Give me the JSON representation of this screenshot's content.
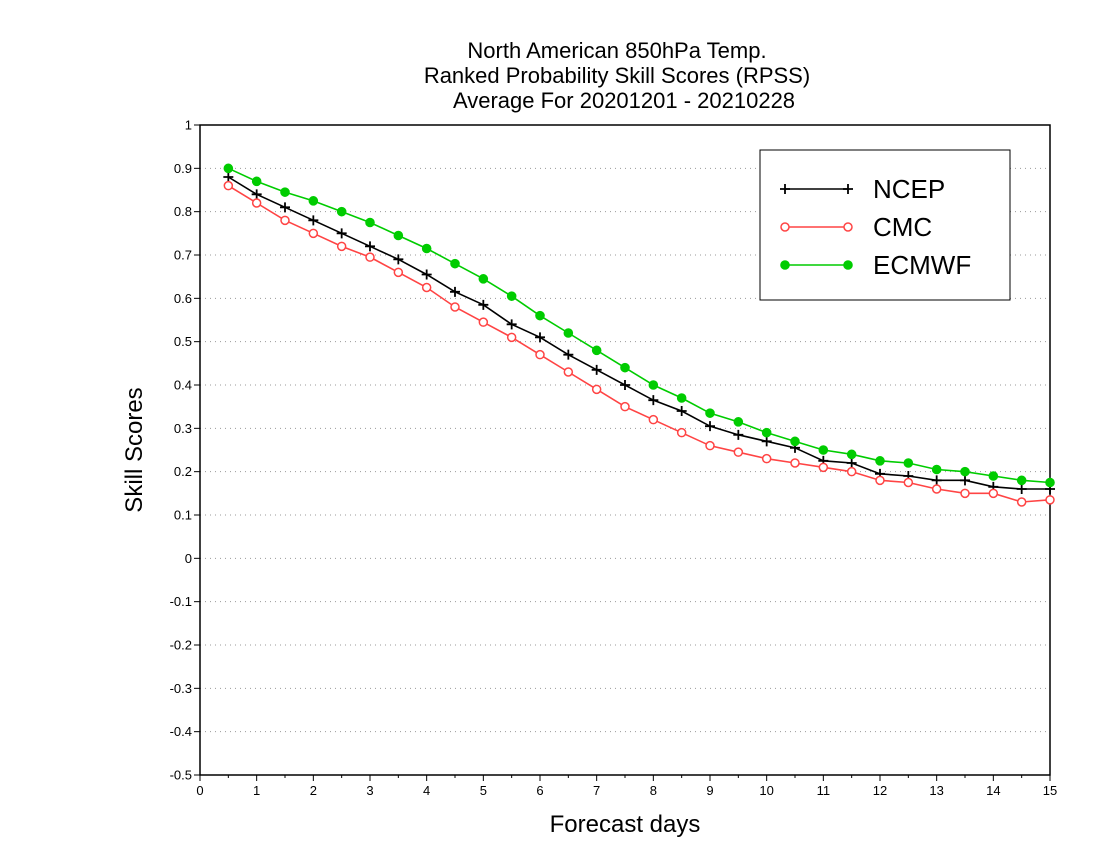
{
  "chart_data": {
    "type": "line",
    "title": [
      "North American 850hPa Temp.",
      "Ranked Probability Skill Scores (RPSS)",
      "Average For 20201201 - 20210228"
    ],
    "xlabel": "Forecast days",
    "ylabel": "Skill Scores",
    "xlim": [
      0,
      15
    ],
    "ylim": [
      -0.5,
      1
    ],
    "xticks": [
      "0",
      "1",
      "2",
      "3",
      "4",
      "5",
      "6",
      "7",
      "8",
      "9",
      "10",
      "11",
      "12",
      "13",
      "14",
      "15"
    ],
    "yticks": [
      "-0.5",
      "-0.4",
      "-0.3",
      "-0.2",
      "-0.1",
      "0",
      "0.1",
      "0.2",
      "0.3",
      "0.4",
      "0.5",
      "0.6",
      "0.7",
      "0.8",
      "0.9",
      "1"
    ],
    "grid": "horizontal dotted",
    "legend_position": "top-right",
    "x": [
      0.5,
      1,
      1.5,
      2,
      2.5,
      3,
      3.5,
      4,
      4.5,
      5,
      5.5,
      6,
      6.5,
      7,
      7.5,
      8,
      8.5,
      9,
      9.5,
      10,
      10.5,
      11,
      11.5,
      12,
      12.5,
      13,
      13.5,
      14,
      14.5,
      15
    ],
    "series": [
      {
        "name": "NCEP",
        "color": "#000000",
        "marker": "plus",
        "values": [
          0.88,
          0.84,
          0.81,
          0.78,
          0.75,
          0.72,
          0.69,
          0.655,
          0.615,
          0.585,
          0.54,
          0.51,
          0.47,
          0.435,
          0.4,
          0.365,
          0.34,
          0.305,
          0.285,
          0.27,
          0.255,
          0.225,
          0.22,
          0.195,
          0.19,
          0.18,
          0.18,
          0.165,
          0.16,
          0.16
        ]
      },
      {
        "name": "CMC",
        "color": "#ff4444",
        "marker": "open-circle",
        "values": [
          0.86,
          0.82,
          0.78,
          0.75,
          0.72,
          0.695,
          0.66,
          0.625,
          0.58,
          0.545,
          0.51,
          0.47,
          0.43,
          0.39,
          0.35,
          0.32,
          0.29,
          0.26,
          0.245,
          0.23,
          0.22,
          0.21,
          0.2,
          0.18,
          0.175,
          0.16,
          0.15,
          0.15,
          0.13,
          0.135
        ]
      },
      {
        "name": "ECMWF",
        "color": "#00cc00",
        "marker": "filled-circle",
        "values": [
          0.9,
          0.87,
          0.845,
          0.825,
          0.8,
          0.775,
          0.745,
          0.715,
          0.68,
          0.645,
          0.605,
          0.56,
          0.52,
          0.48,
          0.44,
          0.4,
          0.37,
          0.335,
          0.315,
          0.29,
          0.27,
          0.25,
          0.24,
          0.225,
          0.22,
          0.205,
          0.2,
          0.19,
          0.18,
          0.175
        ]
      }
    ]
  }
}
